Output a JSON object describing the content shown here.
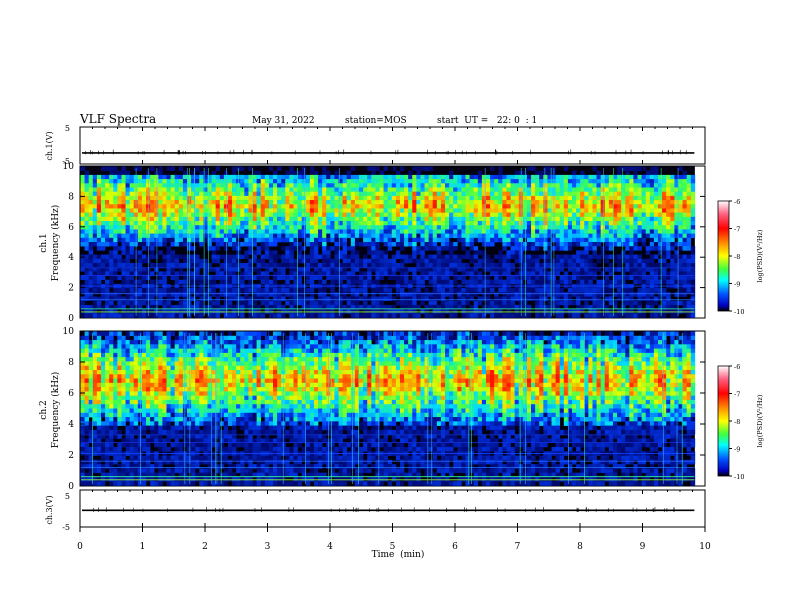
{
  "header": {
    "title": "VLF Spectra",
    "date": "May 31, 2022",
    "station": "station=MOS",
    "start_time": "start  UT =   22: 0  : 1"
  },
  "chart_data": [
    {
      "type": "line",
      "panel": "ch1-waveform",
      "ylabel": "ch.1(V)",
      "ylim": [
        -5,
        5
      ],
      "yticks_labeled": [
        5,
        -5
      ],
      "baseline_value": -2.0,
      "xlim": [
        0,
        10
      ]
    },
    {
      "type": "heatmap",
      "panel": "ch1-spectrogram",
      "ylabel_line1": "ch.1",
      "ylabel_line2": "Frequency (kHz)",
      "ylim": [
        0,
        10
      ],
      "yticks": [
        0,
        2,
        4,
        6,
        8,
        10
      ],
      "xlim": [
        0,
        9.83
      ],
      "band_center_khz": 7.4,
      "band_low_khz": 4.2,
      "band_high_khz": 9.4,
      "colorbar": {
        "label": "log(PSD)(V²/Hz)",
        "ticks": [
          -6,
          -7,
          -8,
          -9,
          -10
        ],
        "range": [
          -10,
          -6
        ]
      }
    },
    {
      "type": "heatmap",
      "panel": "ch2-spectrogram",
      "ylabel_line1": "ch.2",
      "ylabel_line2": "Frequency (kHz)",
      "ylim": [
        0,
        10
      ],
      "yticks": [
        0,
        2,
        4,
        6,
        8,
        10
      ],
      "xlim": [
        0,
        9.83
      ],
      "band_center_khz": 6.8,
      "band_low_khz": 4.0,
      "band_high_khz": 10.0,
      "colorbar": {
        "label": "log(PSD)(V²/Hz)",
        "ticks": [
          -6,
          -7,
          -8,
          -9,
          -10
        ],
        "range": [
          -10,
          -6
        ]
      }
    },
    {
      "type": "line",
      "panel": "ch3-waveform",
      "ylabel": "ch.3(V)",
      "ylim": [
        -5,
        5
      ],
      "yticks_labeled": [
        5,
        -5
      ],
      "baseline_value": -0.5,
      "xlim": [
        0,
        10
      ],
      "xlabel": "Time  (min)",
      "xticks": [
        0,
        1,
        2,
        3,
        4,
        5,
        6,
        7,
        8,
        9,
        10
      ]
    }
  ],
  "colors": {
    "background": "#000000",
    "band_core": "#ff2a00",
    "band_mid": "#c8ff00",
    "band_edge": "#00ffd0",
    "noise_floor": "#001a9e",
    "axis": "#000000"
  }
}
